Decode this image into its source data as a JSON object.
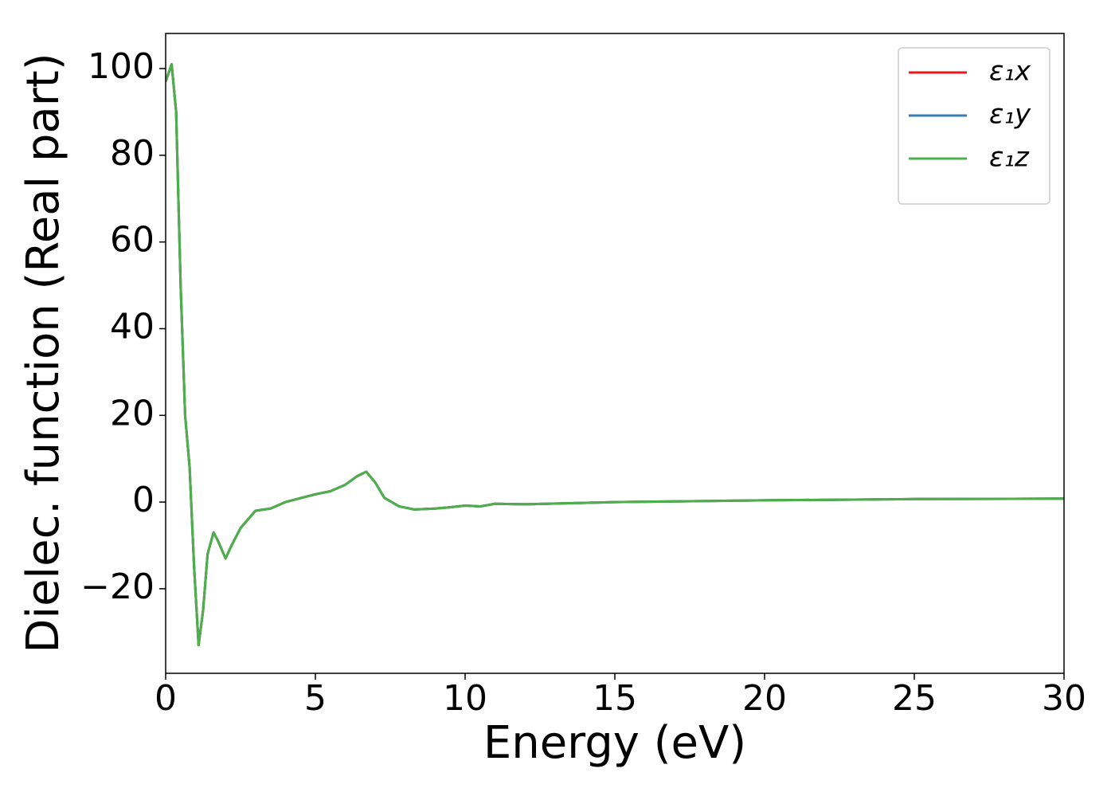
{
  "chart_data": {
    "type": "line",
    "xlabel": "Energy (eV)",
    "ylabel": "Dielec. function (Real part)",
    "x": [
      0,
      0.2,
      0.35,
      0.5,
      0.65,
      0.8,
      0.95,
      1.1,
      1.25,
      1.4,
      1.6,
      1.75,
      2.0,
      2.2,
      2.5,
      3.0,
      3.5,
      4.0,
      5,
      5.5,
      6,
      6.4,
      6.7,
      7.0,
      7.3,
      7.8,
      8.3,
      9,
      9.5,
      10,
      10.5,
      11,
      12,
      15,
      20,
      25,
      30
    ],
    "series": [
      {
        "name": "ε₁x",
        "color": "#e41a1c",
        "values": [
          97,
          101,
          90,
          50,
          20,
          8,
          -15,
          -33,
          -25,
          -12,
          -7,
          -9,
          -13,
          -10,
          -6,
          -2,
          -1.5,
          0,
          1.8,
          2.5,
          4,
          6,
          7,
          4.5,
          1,
          -1,
          -1.7,
          -1.5,
          -1.2,
          -0.8,
          -1,
          -0.4,
          -0.5,
          0,
          0.4,
          0.7,
          0.8
        ]
      },
      {
        "name": "ε₁y",
        "color": "#377eb8",
        "values": [
          97,
          101,
          90,
          50,
          20,
          8,
          -15,
          -33,
          -25,
          -12,
          -7,
          -9,
          -13,
          -10,
          -6,
          -2,
          -1.5,
          0,
          1.8,
          2.5,
          4,
          6,
          7,
          4.5,
          1,
          -1,
          -1.7,
          -1.5,
          -1.2,
          -0.8,
          -1,
          -0.4,
          -0.5,
          0,
          0.4,
          0.7,
          0.8
        ]
      },
      {
        "name": "ε₁z",
        "color": "#4daf4a",
        "values": [
          97,
          101,
          90,
          50,
          20,
          8,
          -15,
          -33,
          -25,
          -12,
          -7,
          -9,
          -13,
          -10,
          -6,
          -2,
          -1.5,
          0,
          1.8,
          2.5,
          4,
          6,
          7,
          4.5,
          1,
          -1,
          -1.7,
          -1.5,
          -1.2,
          -0.8,
          -1,
          -0.4,
          -0.5,
          0,
          0.4,
          0.7,
          0.8
        ]
      }
    ],
    "xlim": [
      0,
      30
    ],
    "xticks": [
      0,
      5,
      10,
      15,
      20,
      25,
      30
    ],
    "ylim": [
      -39.5,
      108.1
    ],
    "yticks": [
      {
        "value": -20,
        "label": "−20"
      },
      0,
      20,
      40,
      60,
      80,
      100
    ],
    "grid": false,
    "legend": "upper right"
  }
}
